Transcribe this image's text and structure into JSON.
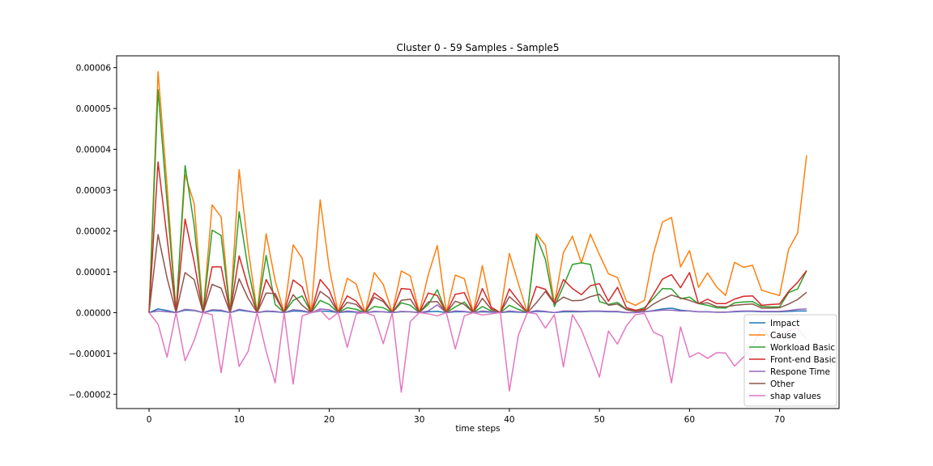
{
  "chart_data": {
    "type": "line",
    "title": "Cluster 0 - 59 Samples - Sample5",
    "xlabel": "time steps",
    "ylabel": "",
    "xlim": [
      -3.6,
      76.6
    ],
    "ylim": [
      -2.35e-05,
      6.29e-05
    ],
    "x_ticks": [
      0,
      10,
      20,
      30,
      40,
      50,
      60,
      70
    ],
    "x_tick_labels": [
      "0",
      "10",
      "20",
      "30",
      "40",
      "50",
      "60",
      "70"
    ],
    "y_ticks": [
      -2e-05,
      -1e-05,
      0,
      1e-05,
      2e-05,
      3e-05,
      4e-05,
      5e-05,
      6e-05
    ],
    "y_tick_labels": [
      "−0.00002",
      "−0.00001",
      "0.00000",
      "0.00001",
      "0.00002",
      "0.00003",
      "0.00004",
      "0.00005",
      "0.00006"
    ],
    "grid": false,
    "legend_position": "lower-right",
    "x": [
      0,
      1,
      2,
      3,
      4,
      5,
      6,
      7,
      8,
      9,
      10,
      11,
      12,
      13,
      14,
      15,
      16,
      17,
      18,
      19,
      20,
      21,
      22,
      23,
      24,
      25,
      26,
      27,
      28,
      29,
      30,
      31,
      32,
      33,
      34,
      35,
      36,
      37,
      38,
      39,
      40,
      41,
      42,
      43,
      44,
      45,
      46,
      47,
      48,
      49,
      50,
      51,
      52,
      53,
      54,
      55,
      56,
      57,
      58,
      59,
      60,
      61,
      62,
      63,
      64,
      65,
      66,
      67,
      68,
      69,
      70,
      71,
      72,
      73
    ],
    "series": [
      {
        "name": "Impact",
        "color": "#1f77b4",
        "values": [
          0,
          9e-07,
          5e-07,
          0,
          6e-07,
          5e-07,
          0,
          5e-07,
          4e-07,
          0,
          6e-07,
          3e-07,
          0,
          3e-07,
          2e-07,
          0,
          4e-07,
          3e-07,
          0,
          4e-07,
          3e-07,
          0,
          2e-07,
          1e-07,
          0,
          2e-07,
          2e-07,
          0,
          2e-07,
          2e-07,
          0,
          2e-07,
          3e-07,
          0,
          2e-07,
          2e-07,
          0,
          2e-07,
          1e-07,
          0,
          2e-07,
          1e-07,
          0,
          3e-07,
          2e-07,
          0,
          2e-07,
          2e-07,
          2e-07,
          3e-07,
          3e-07,
          2e-07,
          2e-07,
          0,
          0,
          2e-07,
          5e-07,
          9e-07,
          1.1e-06,
          6e-07,
          4e-07,
          2e-07,
          2e-07,
          1e-07,
          1e-07,
          2e-07,
          3e-07,
          3e-07,
          2e-07,
          2e-07,
          2e-07,
          3e-07,
          4e-07,
          4e-07
        ]
      },
      {
        "name": "Cause",
        "color": "#ff7f0e",
        "values": [
          0,
          5.9e-05,
          3.1e-05,
          0,
          3.38e-05,
          2.68e-05,
          0,
          2.64e-05,
          2.34e-05,
          0,
          3.5e-05,
          1.57e-05,
          0,
          1.93e-05,
          7.8e-06,
          0,
          1.66e-05,
          1.33e-05,
          0,
          2.76e-05,
          1.1e-05,
          0,
          8.4e-06,
          7e-06,
          0,
          9.8e-06,
          6.9e-06,
          0,
          1.02e-05,
          9e-06,
          0,
          9.3e-06,
          1.64e-05,
          0,
          9.2e-06,
          8.3e-06,
          0,
          1.15e-05,
          1e-06,
          0,
          1.45e-05,
          7.1e-06,
          0,
          1.93e-05,
          1.65e-05,
          2.2e-06,
          1.47e-05,
          1.87e-05,
          1.22e-05,
          1.92e-05,
          1.42e-05,
          9.5e-06,
          8.6e-06,
          2.8e-06,
          1.8e-06,
          3e-06,
          1.45e-05,
          2.22e-05,
          2.33e-05,
          1.12e-05,
          1.52e-05,
          6.2e-06,
          9.7e-06,
          6.3e-06,
          4.2e-06,
          1.23e-05,
          1.11e-05,
          1.16e-05,
          5.5e-06,
          4.8e-06,
          4.2e-06,
          1.55e-05,
          1.95e-05,
          3.85e-05
        ]
      },
      {
        "name": "Workload Basic",
        "color": "#2ca02c",
        "values": [
          0,
          5.46e-05,
          2.7e-05,
          0,
          3.6e-05,
          2.15e-05,
          0,
          2.02e-05,
          1.89e-05,
          0,
          2.47e-05,
          1.07e-05,
          0,
          1.4e-05,
          2e-06,
          0,
          3e-06,
          4.1e-06,
          0,
          3e-06,
          2e-06,
          0,
          1.2e-06,
          8e-07,
          0,
          1.5e-06,
          1.2e-06,
          0,
          2.4e-06,
          1.8e-06,
          0,
          2e-06,
          5.6e-06,
          0,
          1.4e-06,
          2.6e-06,
          0,
          1.5e-06,
          4e-07,
          0,
          1.8e-06,
          8e-07,
          0,
          1.88e-05,
          1.3e-05,
          1.5e-06,
          6.5e-06,
          1.18e-05,
          1.22e-05,
          1.18e-05,
          2.7e-06,
          2e-06,
          2.5e-06,
          8e-07,
          5e-07,
          1.2e-06,
          3.5e-06,
          5.9e-06,
          5.8e-06,
          3.4e-06,
          3.8e-06,
          2.2e-06,
          1.8e-06,
          1.2e-06,
          1.1e-06,
          2.4e-06,
          2.6e-06,
          2.7e-06,
          1.5e-06,
          1.4e-06,
          1.4e-06,
          4.9e-06,
          5.8e-06,
          1.03e-05
        ]
      },
      {
        "name": "Front-end Basic",
        "color": "#d62728",
        "values": [
          0,
          3.69e-05,
          1.82e-05,
          0,
          2.29e-05,
          1.25e-05,
          0,
          1.12e-05,
          1.12e-05,
          0,
          1.39e-05,
          6.3e-06,
          0,
          8.1e-06,
          4e-06,
          0,
          8e-06,
          6.3e-06,
          0,
          8.1e-06,
          5.5e-06,
          0,
          4.1e-06,
          2.8e-06,
          0,
          4.8e-06,
          3.1e-06,
          0,
          5.9e-06,
          5.7e-06,
          0,
          4.8e-06,
          4.2e-06,
          0,
          4.5e-06,
          4.9e-06,
          0,
          5.9e-06,
          1.3e-06,
          0,
          5.8e-06,
          2.9e-06,
          0,
          6.4e-06,
          5.7e-06,
          2.4e-06,
          8.1e-06,
          5.9e-06,
          4.4e-06,
          6.6e-06,
          7.1e-06,
          2.8e-06,
          6.2e-06,
          1.2e-06,
          6e-07,
          8e-07,
          4.5e-06,
          8.2e-06,
          9.3e-06,
          6.1e-06,
          9.8e-06,
          2.2e-06,
          3.3e-06,
          2.2e-06,
          2.2e-06,
          3.3e-06,
          4e-06,
          4.1e-06,
          1.8e-06,
          2e-06,
          2.1e-06,
          5.2e-06,
          7.4e-06,
          1.03e-05
        ]
      },
      {
        "name": "Respone Time",
        "color": "#9467bd",
        "values": [
          0,
          4e-07,
          2e-07,
          0,
          8e-07,
          6e-07,
          0,
          7e-07,
          6e-07,
          0,
          8e-07,
          4e-07,
          0,
          4e-07,
          3e-07,
          0,
          7e-07,
          5e-07,
          0,
          9e-07,
          7e-07,
          0,
          4e-07,
          2e-07,
          0,
          3e-07,
          2e-07,
          0,
          3e-07,
          2e-07,
          0,
          4e-07,
          1.9e-06,
          0,
          4e-07,
          3e-07,
          0,
          4e-07,
          2e-07,
          0,
          4e-07,
          2e-07,
          0,
          5e-07,
          3e-07,
          0,
          4e-07,
          4e-07,
          3e-07,
          4e-07,
          4e-07,
          3e-07,
          3e-07,
          0,
          0,
          2e-07,
          4e-07,
          6e-07,
          6e-07,
          4e-07,
          4e-07,
          2e-07,
          2e-07,
          1e-07,
          1e-07,
          3e-07,
          4e-07,
          4e-07,
          3e-07,
          3e-07,
          3e-07,
          5e-07,
          8e-07,
          9e-07
        ]
      },
      {
        "name": "Other",
        "color": "#8c564b",
        "values": [
          0,
          1.91e-05,
          8.5e-06,
          0,
          9.8e-06,
          8.1e-06,
          0,
          6.9e-06,
          6e-06,
          0,
          8.3e-06,
          3.5e-06,
          0,
          4.8e-06,
          4.7e-06,
          0,
          4.4e-06,
          1.8e-06,
          0,
          5.2e-06,
          3.6e-06,
          0,
          2.5e-06,
          2e-06,
          0,
          3.8e-06,
          2.7e-06,
          0,
          3e-06,
          3.3e-06,
          0,
          2.6e-06,
          2.7e-06,
          0,
          2.8e-06,
          2e-06,
          0,
          3.5e-06,
          8e-07,
          0,
          3.9e-06,
          2e-06,
          0,
          2.4e-06,
          5.2e-06,
          2.2e-06,
          3.8e-06,
          2.9e-06,
          3e-06,
          3.9e-06,
          4.5e-06,
          1.8e-06,
          2.1e-06,
          7e-07,
          3e-07,
          5e-07,
          2.1e-06,
          3.3e-06,
          4.3e-06,
          3.6e-06,
          3e-06,
          2.2e-06,
          2.4e-06,
          1.5e-06,
          1.4e-06,
          1.8e-06,
          2e-06,
          2.1e-06,
          1.1e-06,
          1.1e-06,
          1.2e-06,
          2.1e-06,
          3.2e-06,
          5e-06
        ]
      },
      {
        "name": "shap values",
        "color": "#e377c2",
        "values": [
          0,
          -2.8e-06,
          -1.09e-05,
          0,
          -1.18e-05,
          -6.9e-06,
          0,
          -5e-07,
          -1.47e-05,
          0,
          -1.32e-05,
          -9.5e-06,
          0,
          -9.5e-06,
          -1.72e-05,
          0,
          -1.75e-05,
          -8e-07,
          0,
          6e-07,
          -1.7e-06,
          0,
          -8.5e-06,
          -3e-07,
          0,
          -8e-07,
          -7.6e-06,
          0,
          -1.95e-05,
          -2.2e-06,
          0,
          -3e-07,
          -8e-07,
          0,
          -8.9e-06,
          -8e-07,
          0,
          -6e-07,
          -3e-07,
          0,
          -1.92e-05,
          -5.5e-06,
          0,
          -3e-07,
          -3.8e-06,
          -5e-07,
          -1.33e-05,
          -5e-07,
          -4.2e-06,
          -9.9e-06,
          -1.58e-05,
          -4.5e-06,
          -7.7e-06,
          -3.2e-06,
          -5e-07,
          -2e-07,
          -4.8e-06,
          -5.8e-06,
          -1.72e-05,
          -3.5e-06,
          -1.09e-05,
          -9.8e-06,
          -1.12e-05,
          -9.8e-06,
          -9.9e-06,
          -1.31e-05,
          -1.09e-05,
          -8.1e-06,
          -3.8e-06,
          -6.2e-06,
          -5.5e-06,
          -4.5e-06,
          -3.8e-06,
          -6.5e-06
        ]
      }
    ]
  }
}
